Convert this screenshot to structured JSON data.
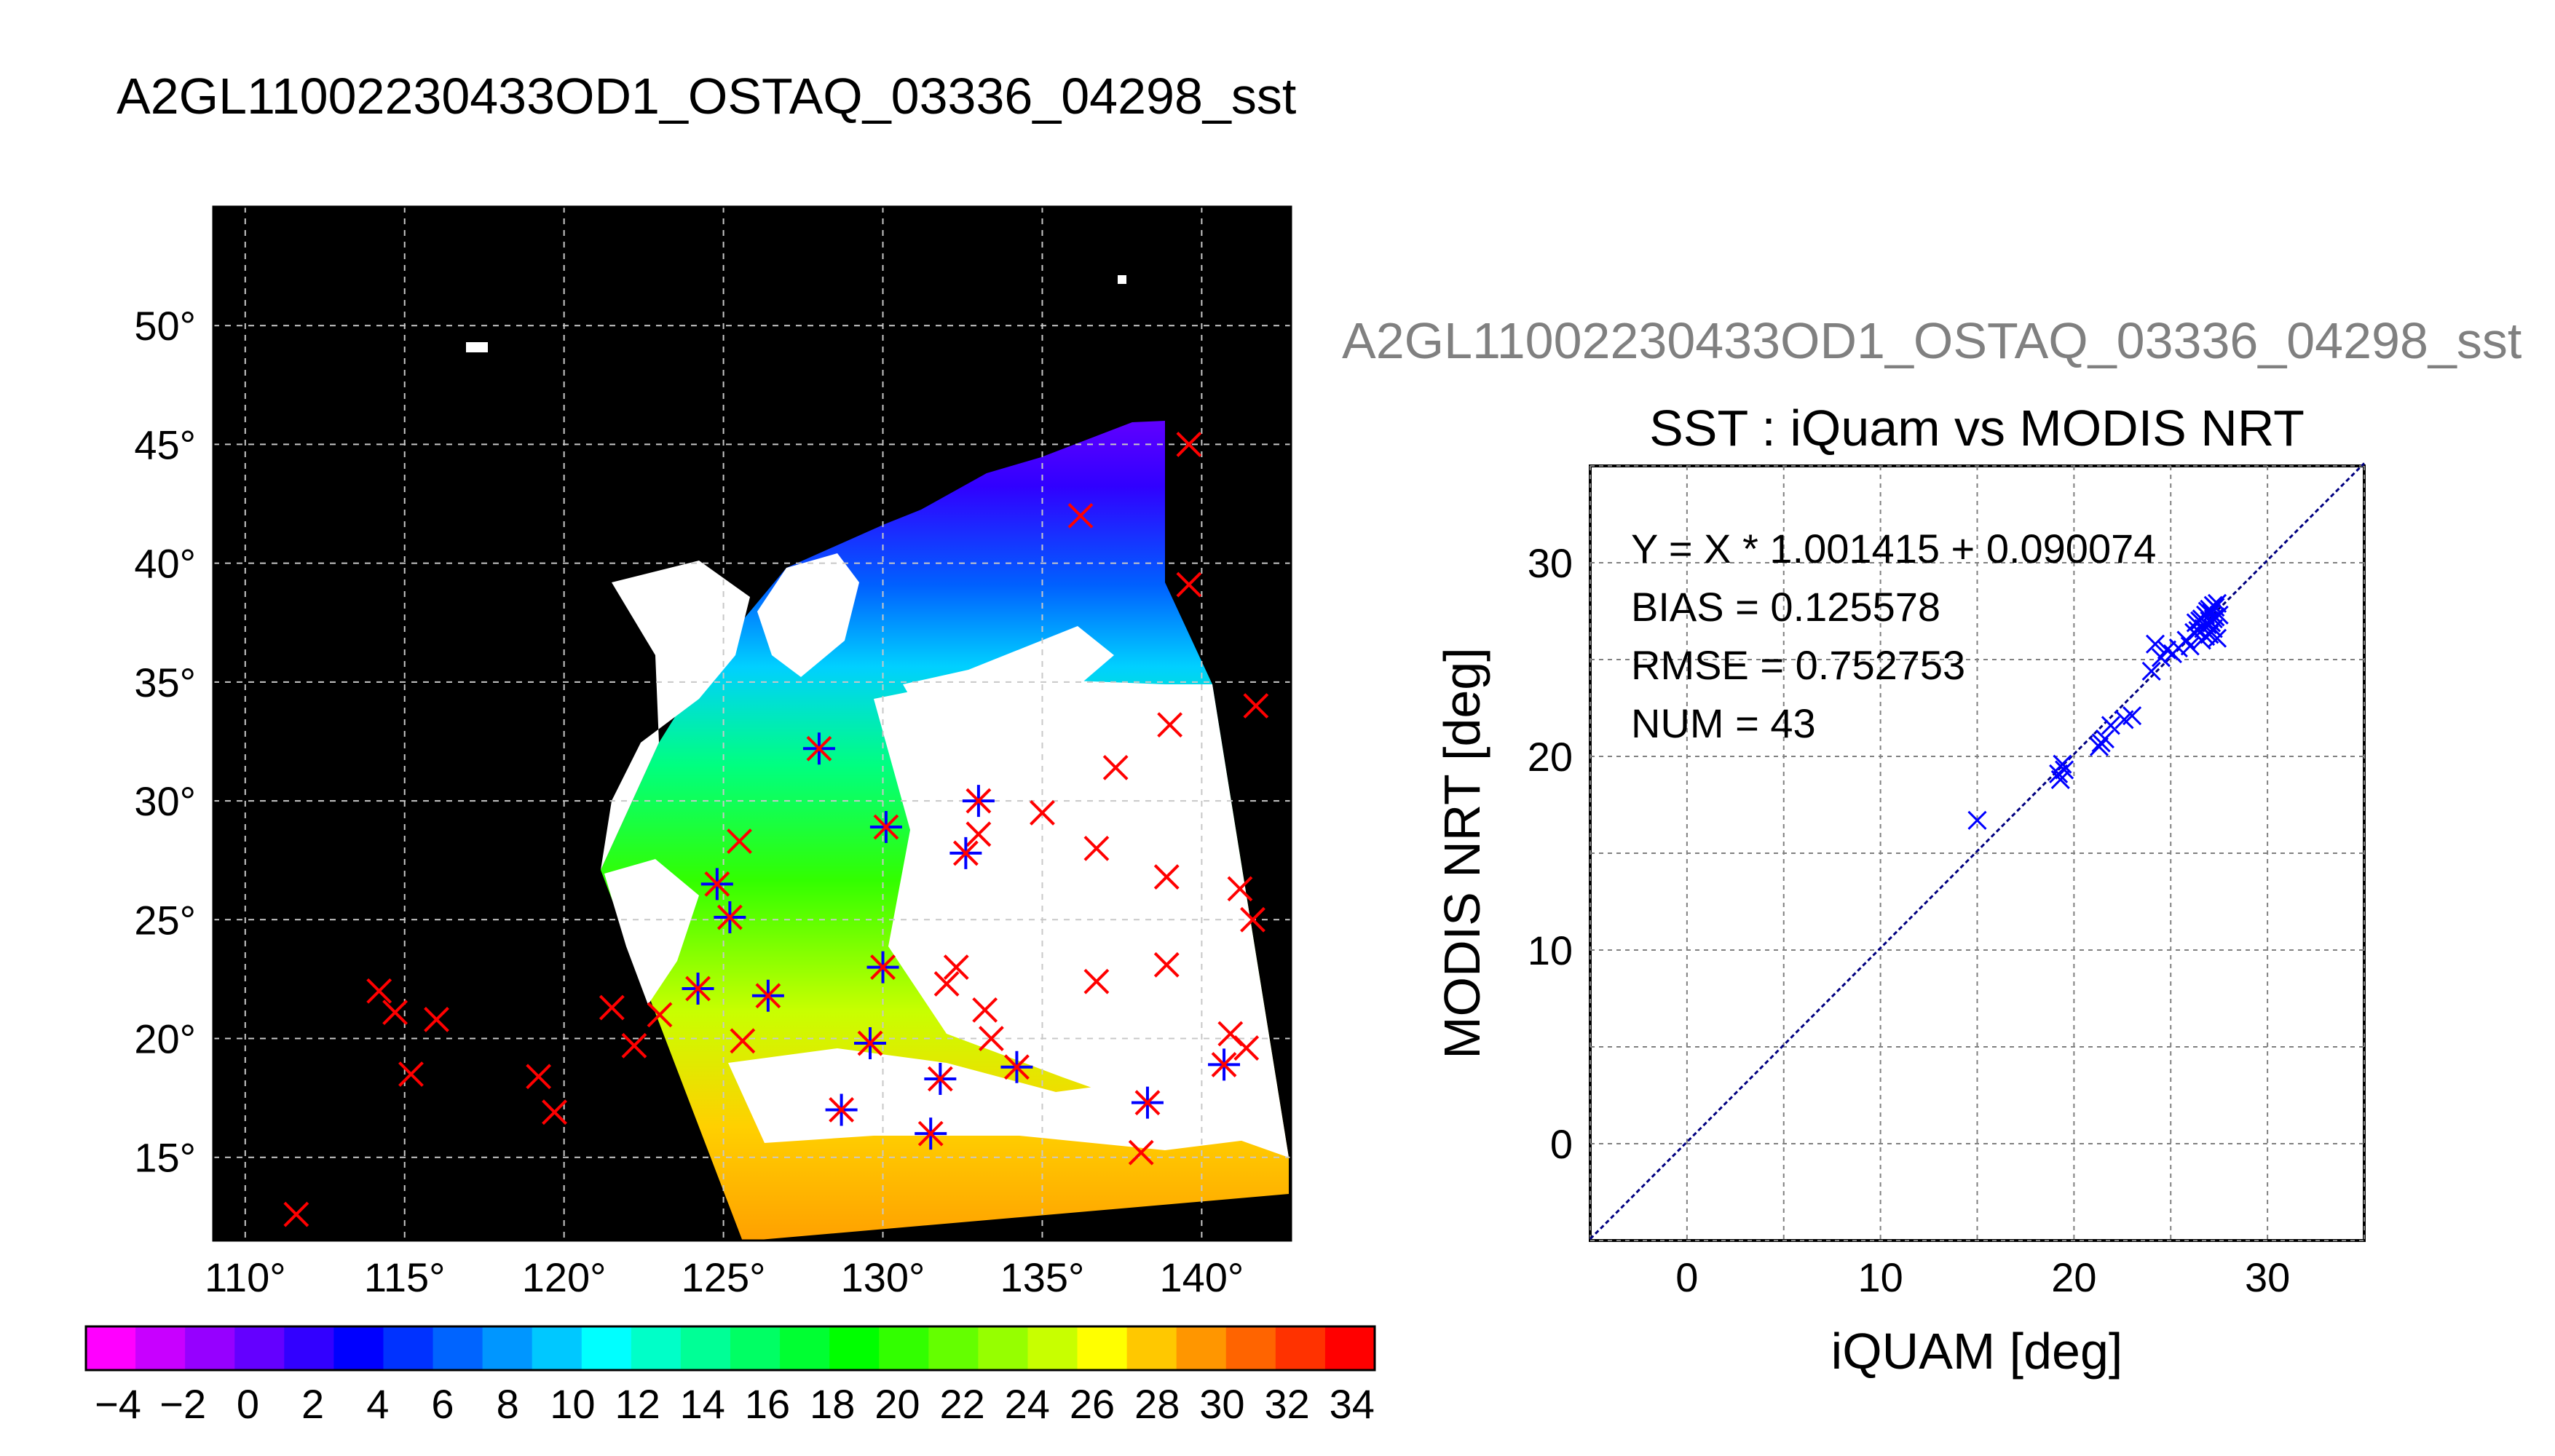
{
  "title": "A2GL11002230433OD1_OSTAQ_03336_04298_sst",
  "map": {
    "lon_ticks": [
      110,
      115,
      120,
      125,
      130,
      135,
      140
    ],
    "lat_ticks": [
      15,
      20,
      25,
      30,
      35,
      40,
      45,
      50
    ],
    "lon_range": [
      109,
      142.8
    ],
    "lat_range": [
      11.5,
      55
    ],
    "degree_symbol": "°",
    "colorbar": {
      "labels": [
        "−4",
        "−2",
        "0",
        "2",
        "4",
        "6",
        "8",
        "10",
        "12",
        "14",
        "16",
        "18",
        "20",
        "22",
        "24",
        "26",
        "28",
        "30",
        "32",
        "34"
      ],
      "colors": [
        "#ff00ff",
        "#c800ff",
        "#9600ff",
        "#6400ff",
        "#3200ff",
        "#0000ff",
        "#0032ff",
        "#0064ff",
        "#0096ff",
        "#00c8ff",
        "#00ffff",
        "#00ffc8",
        "#00ff96",
        "#00ff64",
        "#00ff32",
        "#00ff00",
        "#32ff00",
        "#64ff00",
        "#96ff00",
        "#c8ff00",
        "#ffff00",
        "#ffc800",
        "#ff9600",
        "#ff6400",
        "#ff3200",
        "#ff0000"
      ]
    },
    "red_markers": [
      {
        "lon": 139.6,
        "lat": 45.0
      },
      {
        "lon": 136.2,
        "lat": 42.0
      },
      {
        "lon": 139.6,
        "lat": 39.1
      },
      {
        "lon": 141.7,
        "lat": 34.0
      },
      {
        "lon": 139.0,
        "lat": 33.2
      },
      {
        "lon": 137.3,
        "lat": 31.4
      },
      {
        "lon": 135.0,
        "lat": 29.5
      },
      {
        "lon": 133.0,
        "lat": 28.6
      },
      {
        "lon": 136.7,
        "lat": 28.0
      },
      {
        "lon": 138.9,
        "lat": 26.8
      },
      {
        "lon": 141.2,
        "lat": 26.3
      },
      {
        "lon": 141.6,
        "lat": 25.0
      },
      {
        "lon": 132.3,
        "lat": 23.0
      },
      {
        "lon": 132.0,
        "lat": 22.3
      },
      {
        "lon": 138.9,
        "lat": 23.1
      },
      {
        "lon": 136.7,
        "lat": 22.4
      },
      {
        "lon": 133.2,
        "lat": 21.2
      },
      {
        "lon": 133.4,
        "lat": 20.0
      },
      {
        "lon": 140.9,
        "lat": 20.2
      },
      {
        "lon": 141.4,
        "lat": 19.6
      },
      {
        "lon": 125.6,
        "lat": 19.9
      },
      {
        "lon": 123.0,
        "lat": 21.0
      },
      {
        "lon": 121.5,
        "lat": 21.3
      },
      {
        "lon": 122.2,
        "lat": 19.7
      },
      {
        "lon": 114.2,
        "lat": 22.0
      },
      {
        "lon": 114.7,
        "lat": 21.1
      },
      {
        "lon": 116.0,
        "lat": 20.8
      },
      {
        "lon": 115.2,
        "lat": 18.5
      },
      {
        "lon": 119.2,
        "lat": 18.4
      },
      {
        "lon": 119.7,
        "lat": 16.9
      },
      {
        "lon": 111.6,
        "lat": 12.6
      },
      {
        "lon": 138.1,
        "lat": 15.2
      },
      {
        "lon": 125.5,
        "lat": 28.3
      }
    ],
    "star_markers": [
      {
        "lon": 128.0,
        "lat": 32.2
      },
      {
        "lon": 133.0,
        "lat": 30.0
      },
      {
        "lon": 130.1,
        "lat": 28.9
      },
      {
        "lon": 132.6,
        "lat": 27.8
      },
      {
        "lon": 124.8,
        "lat": 26.5
      },
      {
        "lon": 125.2,
        "lat": 25.1
      },
      {
        "lon": 124.2,
        "lat": 22.1
      },
      {
        "lon": 126.4,
        "lat": 21.8
      },
      {
        "lon": 130.0,
        "lat": 23.0
      },
      {
        "lon": 129.6,
        "lat": 19.8
      },
      {
        "lon": 131.8,
        "lat": 18.3
      },
      {
        "lon": 134.2,
        "lat": 18.8
      },
      {
        "lon": 128.7,
        "lat": 17.0
      },
      {
        "lon": 131.5,
        "lat": 16.0
      },
      {
        "lon": 138.3,
        "lat": 17.3
      },
      {
        "lon": 140.7,
        "lat": 18.9
      }
    ]
  },
  "chart_data": {
    "type": "scatter",
    "filename": "A2GL11002230433OD1_OSTAQ_03336_04298_sst",
    "title": "SST : iQuam vs MODIS NRT",
    "xlabel": "iQUAM [deg]",
    "ylabel": "MODIS NRT [deg]",
    "xlim": [
      -5,
      35
    ],
    "ylim": [
      -5,
      35
    ],
    "xticks": [
      0,
      10,
      20,
      30
    ],
    "yticks": [
      0,
      10,
      20,
      30
    ],
    "grid": true,
    "fit": {
      "slope": 1.001415,
      "intercept": 0.090074
    },
    "stats": [
      "Y = X * 1.001415 + 0.090074",
      "BIAS = 0.125578",
      "RMSE = 0.752753",
      "NUM = 43"
    ],
    "series": [
      {
        "points": [
          [
            15.0,
            16.7
          ],
          [
            19.3,
            18.8
          ],
          [
            19.5,
            19.3
          ],
          [
            19.4,
            19.6
          ],
          [
            21.3,
            20.5
          ],
          [
            21.6,
            20.9
          ],
          [
            21.9,
            21.6
          ],
          [
            22.6,
            21.9
          ],
          [
            23.0,
            22.1
          ],
          [
            24.0,
            24.4
          ],
          [
            24.2,
            25.8
          ],
          [
            24.8,
            25.5
          ],
          [
            25.1,
            25.3
          ],
          [
            25.8,
            26.0
          ],
          [
            26.0,
            25.7
          ],
          [
            26.2,
            26.4
          ],
          [
            26.3,
            26.9
          ],
          [
            26.4,
            26.5
          ],
          [
            26.5,
            27.0
          ],
          [
            26.6,
            27.1
          ],
          [
            26.7,
            26.6
          ],
          [
            26.8,
            27.3
          ],
          [
            26.8,
            26.2
          ],
          [
            26.9,
            26.8
          ],
          [
            27.0,
            27.6
          ],
          [
            27.0,
            27.0
          ],
          [
            27.1,
            26.9
          ],
          [
            27.1,
            27.4
          ],
          [
            27.2,
            27.1
          ],
          [
            27.2,
            26.6
          ],
          [
            27.3,
            27.7
          ],
          [
            27.3,
            27.2
          ],
          [
            27.4,
            26.1
          ],
          [
            27.4,
            27.9
          ],
          [
            27.0,
            26.3
          ],
          [
            26.6,
            26.0
          ],
          [
            26.9,
            27.5
          ],
          [
            27.2,
            27.8
          ],
          [
            19.2,
            19.1
          ],
          [
            21.4,
            20.7
          ],
          [
            25.4,
            25.6
          ],
          [
            24.5,
            25.1
          ],
          [
            27.5,
            27.3
          ]
        ]
      }
    ]
  }
}
